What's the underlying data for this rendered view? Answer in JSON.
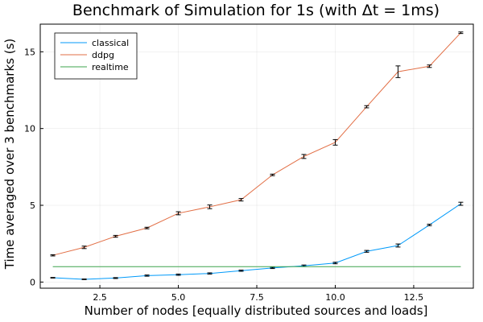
{
  "chart_data": {
    "type": "line",
    "title": "Benchmark of Simulation for 1s (with Δt = 1ms)",
    "xlabel": "Number of nodes [equally distributed sources and loads]",
    "ylabel": "Time averaged over 3 benchmarks (s)",
    "xlim": [
      0.6,
      14.4
    ],
    "ylim": [
      -0.4,
      16.8
    ],
    "xticks": [
      2.5,
      5.0,
      7.5,
      10.0,
      12.5
    ],
    "xtick_labels": [
      "2.5",
      "5.0",
      "7.5",
      "10.0",
      "12.5"
    ],
    "yticks": [
      0,
      5,
      10,
      15
    ],
    "ytick_labels": [
      "0",
      "5",
      "10",
      "15"
    ],
    "grid": true,
    "legend_position": "top-left",
    "x": [
      1,
      2,
      3,
      4,
      5,
      6,
      7,
      8,
      9,
      10,
      11,
      12,
      13,
      14
    ],
    "series": [
      {
        "name": "classical",
        "color": "#009AFA",
        "values": [
          0.28,
          0.18,
          0.26,
          0.42,
          0.48,
          0.56,
          0.74,
          0.92,
          1.06,
          1.24,
          2.0,
          2.38,
          3.72,
          5.1
        ],
        "errors": [
          0.02,
          0.02,
          0.03,
          0.04,
          0.04,
          0.04,
          0.04,
          0.04,
          0.05,
          0.05,
          0.06,
          0.1,
          0.05,
          0.1
        ]
      },
      {
        "name": "ddpg",
        "color": "#E26F46",
        "values": [
          1.74,
          2.26,
          2.98,
          3.52,
          4.48,
          4.9,
          5.36,
          6.98,
          8.18,
          9.1,
          11.42,
          13.7,
          14.06,
          16.24
        ],
        "errors": [
          0.04,
          0.08,
          0.06,
          0.05,
          0.1,
          0.12,
          0.08,
          0.05,
          0.13,
          0.18,
          0.07,
          0.38,
          0.08,
          0.05
        ]
      },
      {
        "name": "realtime",
        "color": "#3DA44D",
        "values": [
          1,
          1,
          1,
          1,
          1,
          1,
          1,
          1,
          1,
          1,
          1,
          1,
          1,
          1
        ],
        "errors": null
      }
    ]
  }
}
